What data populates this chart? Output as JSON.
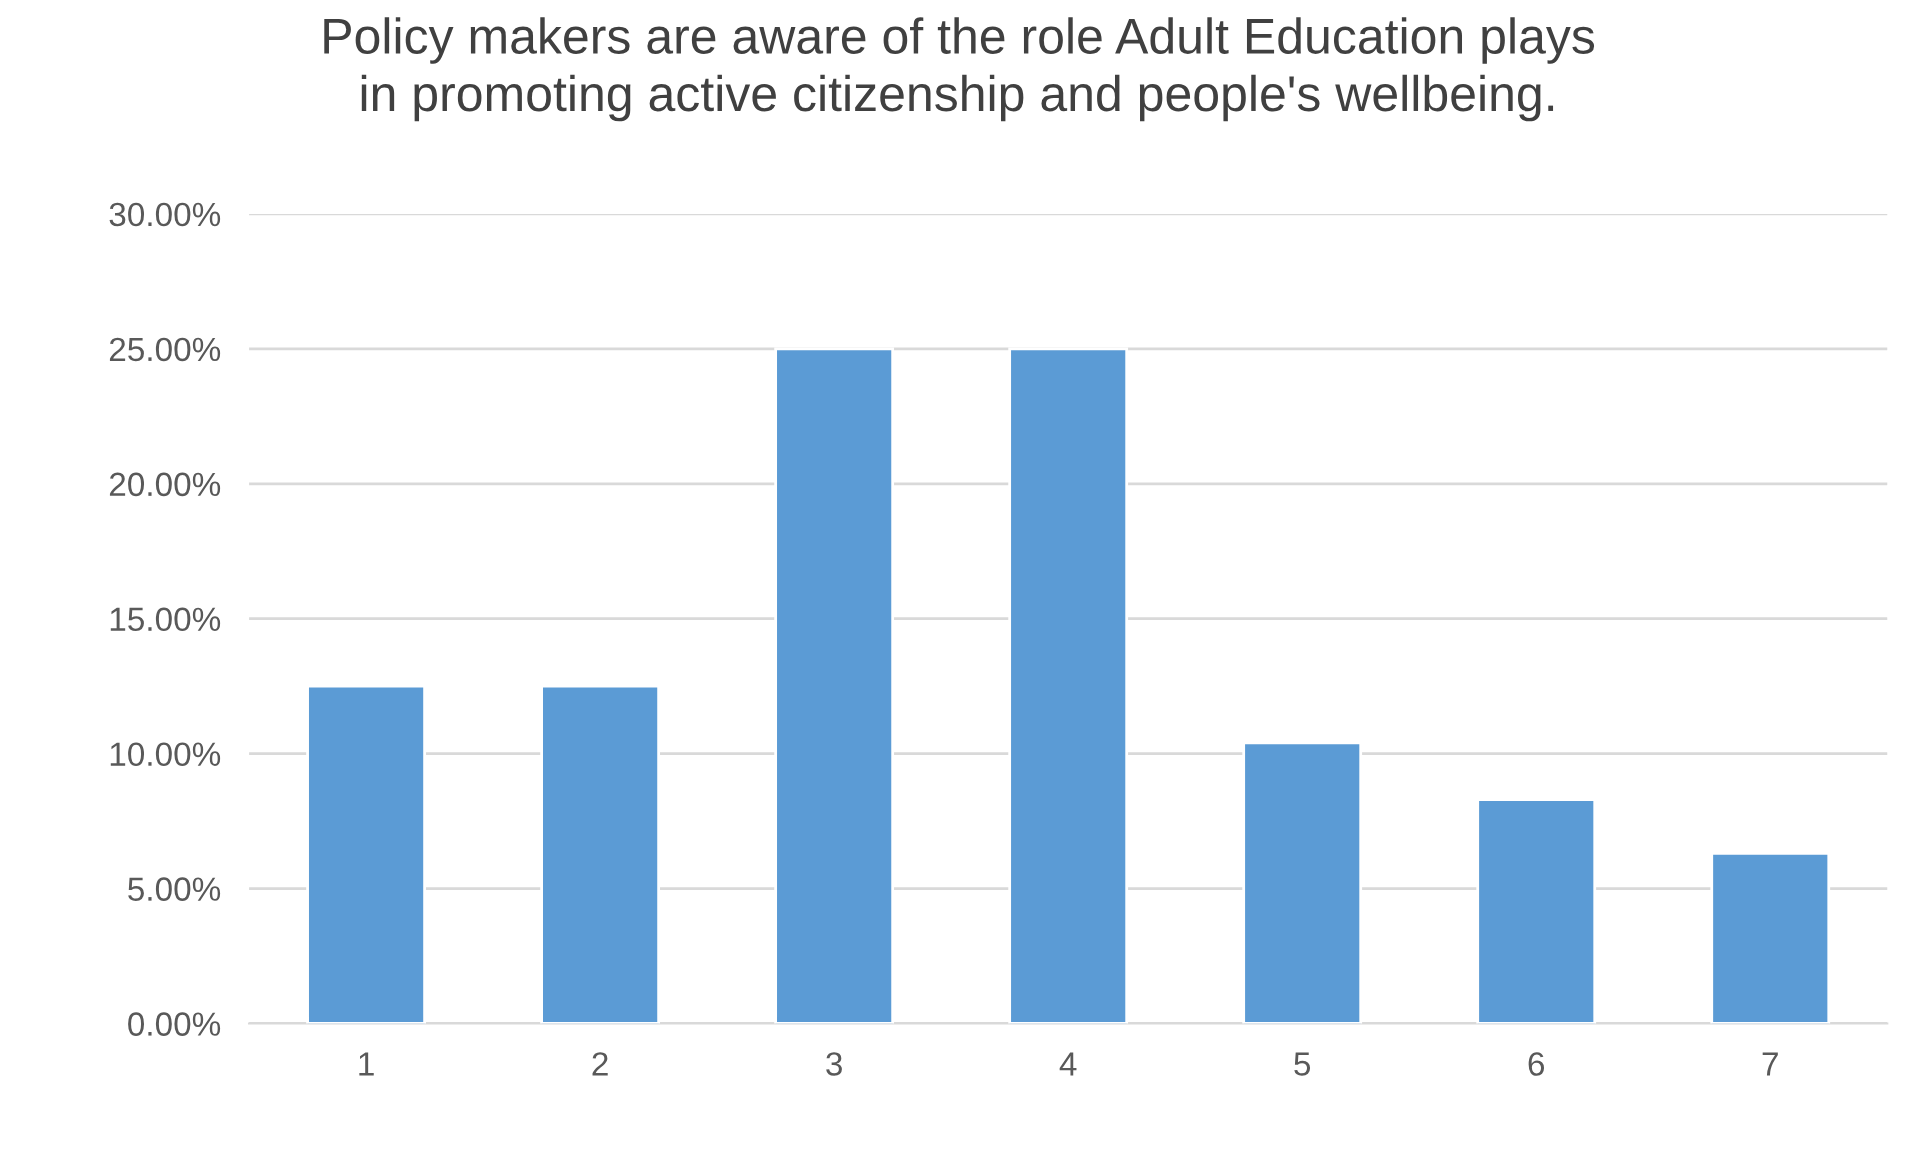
{
  "chart_data": {
    "type": "bar",
    "title": "Policy makers are aware of the role Adult Education plays\nin promoting active citizenship and people's wellbeing.",
    "categories": [
      "1",
      "2",
      "3",
      "4",
      "5",
      "6",
      "7"
    ],
    "values": [
      12.5,
      12.5,
      25,
      25,
      10.4,
      8.3,
      6.3
    ],
    "color": "#5b9bd5",
    "ylim": [
      0,
      30
    ],
    "yticks": [
      {
        "value": 0,
        "label": "0.00%"
      },
      {
        "value": 5,
        "label": "5.00%"
      },
      {
        "value": 10,
        "label": "10.00%"
      },
      {
        "value": 15,
        "label": "15.00%"
      },
      {
        "value": 20,
        "label": "20.00%"
      },
      {
        "value": 25,
        "label": "25.00%"
      },
      {
        "value": 30,
        "label": "30.00%"
      }
    ],
    "grid": "y"
  }
}
